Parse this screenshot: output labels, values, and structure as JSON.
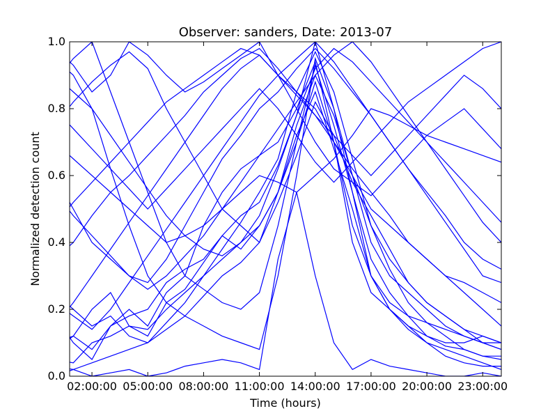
{
  "chart_data": {
    "type": "line",
    "title": "Observer: sanders, Date: 2013-07",
    "xlabel": "Time (hours)",
    "ylabel": "Normalized detection count",
    "x": [
      "00:00",
      "01:00",
      "02:00",
      "03:00",
      "04:00",
      "05:00",
      "06:00",
      "07:00",
      "08:00",
      "09:00",
      "10:00",
      "11:00",
      "12:00",
      "13:00",
      "14:00",
      "15:00",
      "16:00",
      "17:00",
      "18:00",
      "19:00",
      "20:00",
      "21:00",
      "22:00",
      "23:00",
      "24:00"
    ],
    "xlim": [
      "00:48",
      "24:00"
    ],
    "xticks": [
      "02:00:00",
      "05:00:00",
      "08:00:00",
      "11:00:00",
      "14:00:00",
      "17:00:00",
      "20:00:00",
      "23:00:00"
    ],
    "ylim": [
      0.0,
      1.0
    ],
    "yticks": [
      "0.0",
      "0.2",
      "0.4",
      "0.6",
      "0.8",
      "1.0"
    ],
    "grid": false,
    "legend": false,
    "line_color": "#0000ff",
    "series": [
      {
        "values": [
          0.18,
          0.1,
          0.05,
          0.15,
          0.2,
          0.15,
          0.25,
          0.3,
          0.45,
          0.55,
          0.62,
          0.66,
          0.7,
          0.8,
          0.94,
          0.7,
          0.4,
          0.25,
          0.2,
          0.15,
          0.12,
          0.1,
          0.1,
          0.12,
          0.1
        ]
      },
      {
        "values": [
          0.1,
          0.12,
          0.08,
          0.15,
          0.18,
          0.2,
          0.28,
          0.32,
          0.35,
          0.42,
          0.48,
          0.52,
          0.63,
          0.78,
          1.0,
          0.8,
          0.6,
          0.4,
          0.3,
          0.25,
          0.2,
          0.15,
          0.12,
          0.1,
          0.1
        ]
      },
      {
        "values": [
          0.05,
          0.04,
          0.1,
          0.12,
          0.15,
          0.14,
          0.2,
          0.25,
          0.3,
          0.35,
          0.4,
          0.45,
          0.55,
          0.7,
          0.93,
          0.75,
          0.55,
          0.35,
          0.25,
          0.18,
          0.12,
          0.09,
          0.08,
          0.06,
          0.06
        ]
      },
      {
        "values": [
          0.25,
          0.2,
          0.15,
          0.18,
          0.12,
          0.1,
          0.16,
          0.22,
          0.3,
          0.38,
          0.46,
          0.55,
          0.65,
          0.85,
          0.97,
          0.85,
          0.65,
          0.45,
          0.32,
          0.22,
          0.16,
          0.12,
          0.08,
          0.06,
          0.05
        ]
      },
      {
        "values": [
          0.08,
          0.12,
          0.2,
          0.25,
          0.15,
          0.12,
          0.22,
          0.26,
          0.34,
          0.42,
          0.38,
          0.45,
          0.55,
          0.72,
          0.85,
          0.68,
          0.5,
          0.3,
          0.2,
          0.14,
          0.1,
          0.06,
          0.04,
          0.03,
          0.03
        ]
      },
      {
        "values": [
          0.0,
          0.02,
          0.0,
          0.01,
          0.02,
          0.0,
          0.01,
          0.03,
          0.04,
          0.05,
          0.04,
          0.02,
          0.35,
          0.55,
          0.3,
          0.1,
          0.02,
          0.05,
          0.03,
          0.02,
          0.01,
          0.0,
          0.0,
          0.01,
          0.0
        ]
      },
      {
        "values": [
          0.03,
          0.02,
          0.04,
          0.06,
          0.08,
          0.1,
          0.14,
          0.18,
          0.24,
          0.3,
          0.34,
          0.4,
          0.52,
          0.66,
          0.82,
          0.72,
          0.58,
          0.48,
          0.38,
          0.28,
          0.22,
          0.18,
          0.14,
          0.1,
          0.08
        ]
      },
      {
        "values": [
          0.95,
          0.9,
          0.8,
          0.62,
          0.45,
          0.3,
          0.22,
          0.18,
          0.15,
          0.12,
          0.1,
          0.08,
          0.3,
          0.6,
          0.95,
          0.8,
          0.55,
          0.3,
          0.2,
          0.15,
          0.1,
          0.08,
          0.06,
          0.04,
          0.02
        ]
      },
      {
        "values": [
          0.88,
          0.95,
          1.0,
          0.85,
          0.7,
          0.55,
          0.4,
          0.3,
          0.26,
          0.22,
          0.2,
          0.25,
          0.45,
          0.7,
          0.88,
          0.7,
          0.45,
          0.3,
          0.22,
          0.18,
          0.16,
          0.14,
          0.12,
          0.1,
          0.08
        ]
      },
      {
        "values": [
          0.75,
          0.82,
          0.88,
          0.93,
          0.97,
          0.92,
          0.8,
          0.7,
          0.6,
          0.5,
          0.45,
          0.4,
          0.55,
          0.75,
          0.9,
          0.78,
          0.6,
          0.45,
          0.35,
          0.28,
          0.22,
          0.18,
          0.14,
          0.12,
          0.1
        ]
      },
      {
        "values": [
          0.6,
          0.5,
          0.4,
          0.35,
          0.3,
          0.28,
          0.35,
          0.45,
          0.55,
          0.65,
          0.72,
          0.8,
          0.85,
          0.92,
          0.98,
          0.92,
          0.85,
          0.78,
          0.7,
          0.62,
          0.55,
          0.48,
          0.4,
          0.35,
          0.32
        ]
      },
      {
        "values": [
          0.98,
          0.93,
          0.85,
          0.9,
          1.0,
          0.96,
          0.9,
          0.85,
          0.88,
          0.92,
          0.96,
          1.0,
          0.9,
          0.85,
          0.8,
          0.7,
          0.6,
          0.5,
          0.45,
          0.4,
          0.35,
          0.3,
          0.25,
          0.2,
          0.15
        ]
      },
      {
        "values": [
          0.7,
          0.65,
          0.6,
          0.55,
          0.5,
          0.45,
          0.4,
          0.42,
          0.45,
          0.5,
          0.55,
          0.6,
          0.58,
          0.55,
          0.6,
          0.65,
          0.72,
          0.8,
          0.78,
          0.75,
          0.72,
          0.7,
          0.68,
          0.66,
          0.64
        ]
      },
      {
        "values": [
          0.35,
          0.4,
          0.48,
          0.55,
          0.6,
          0.66,
          0.72,
          0.78,
          0.85,
          0.9,
          0.95,
          0.98,
          0.92,
          0.85,
          0.78,
          0.7,
          0.62,
          0.55,
          0.48,
          0.4,
          0.35,
          0.3,
          0.28,
          0.25,
          0.22
        ]
      },
      {
        "values": [
          0.22,
          0.18,
          0.14,
          0.2,
          0.28,
          0.36,
          0.44,
          0.52,
          0.6,
          0.68,
          0.76,
          0.84,
          0.9,
          0.95,
          1.0,
          0.94,
          0.86,
          0.78,
          0.7,
          0.62,
          0.54,
          0.46,
          0.38,
          0.3,
          0.28
        ]
      },
      {
        "values": [
          0.8,
          0.74,
          0.68,
          0.62,
          0.56,
          0.5,
          0.56,
          0.62,
          0.68,
          0.74,
          0.8,
          0.86,
          0.8,
          0.72,
          0.64,
          0.58,
          0.64,
          0.7,
          0.76,
          0.82,
          0.86,
          0.9,
          0.94,
          0.98,
          1.0
        ]
      },
      {
        "values": [
          0.45,
          0.52,
          0.58,
          0.64,
          0.7,
          0.76,
          0.82,
          0.86,
          0.9,
          0.94,
          0.98,
          0.96,
          0.9,
          0.84,
          0.78,
          0.72,
          0.66,
          0.6,
          0.66,
          0.72,
          0.78,
          0.84,
          0.9,
          0.86,
          0.8
        ]
      },
      {
        "values": [
          0.15,
          0.22,
          0.3,
          0.38,
          0.46,
          0.54,
          0.62,
          0.7,
          0.78,
          0.86,
          0.92,
          0.96,
          0.9,
          0.8,
          0.7,
          0.62,
          0.58,
          0.54,
          0.6,
          0.66,
          0.72,
          0.76,
          0.8,
          0.74,
          0.68
        ]
      },
      {
        "values": [
          0.9,
          0.85,
          0.8,
          0.72,
          0.64,
          0.56,
          0.48,
          0.42,
          0.38,
          0.36,
          0.4,
          0.48,
          0.62,
          0.78,
          0.92,
          0.98,
          0.94,
          0.88,
          0.82,
          0.76,
          0.7,
          0.64,
          0.58,
          0.52,
          0.46
        ]
      },
      {
        "values": [
          0.55,
          0.48,
          0.42,
          0.36,
          0.3,
          0.26,
          0.3,
          0.36,
          0.42,
          0.5,
          0.58,
          0.66,
          0.74,
          0.82,
          0.9,
          0.96,
          1.0,
          0.94,
          0.86,
          0.78,
          0.7,
          0.62,
          0.54,
          0.46,
          0.4
        ]
      }
    ]
  }
}
